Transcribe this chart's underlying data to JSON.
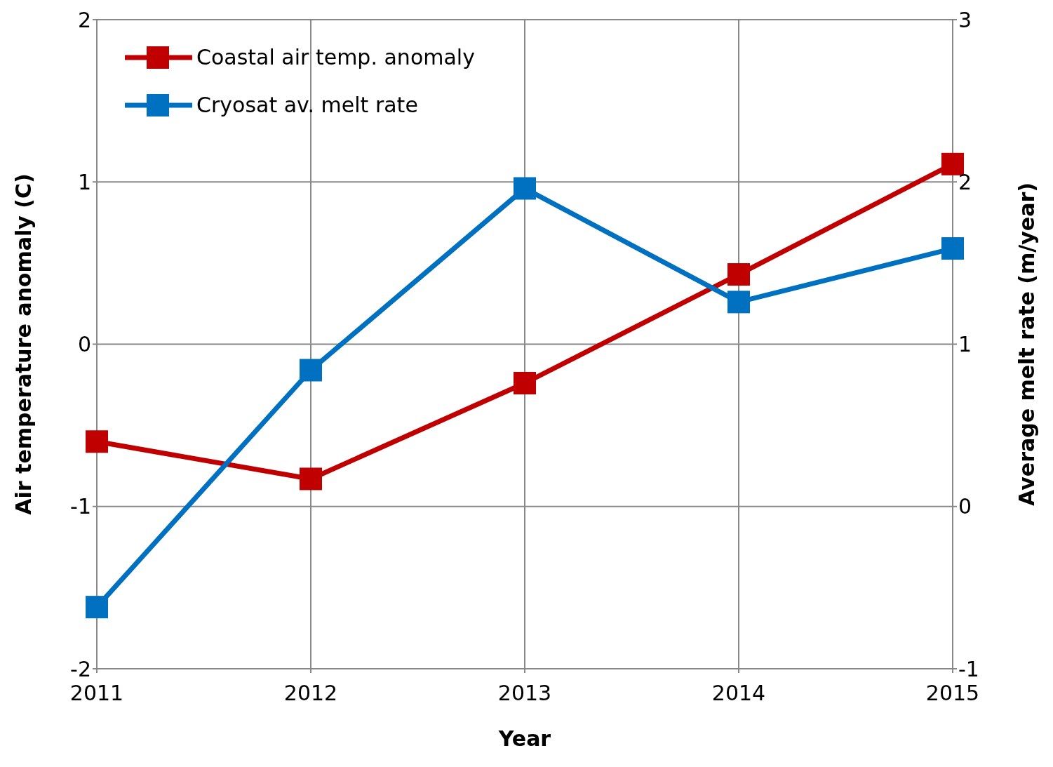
{
  "chart_data": {
    "type": "line",
    "xlabel": "Year",
    "ylabel": "Air temperature anomaly  (C)",
    "y2label": "Average melt rate (m/year)",
    "x": [
      2011,
      2012,
      2013,
      2014,
      2015
    ],
    "xlim": [
      2011,
      2015
    ],
    "xticks": [
      2011,
      2012,
      2013,
      2014,
      2015
    ],
    "ylim": [
      -2,
      2
    ],
    "yticks": [
      -2,
      -1,
      0,
      1,
      2
    ],
    "y2lim": [
      -1,
      3
    ],
    "y2ticks": [
      -1,
      0,
      1,
      2,
      3
    ],
    "series": [
      {
        "name": "Coastal air temp. anomaly",
        "color": "#c00000",
        "values": [
          -0.6,
          -0.83,
          -0.24,
          0.43,
          1.11
        ]
      },
      {
        "name": "Cryosat av. melt rate",
        "color": "#0070c0",
        "axis": "y2",
        "values": [
          -0.62,
          0.84,
          1.96,
          1.26,
          1.59
        ]
      }
    ],
    "grid": true,
    "legend": "top left",
    "marker": "square",
    "line_style": "solid"
  }
}
